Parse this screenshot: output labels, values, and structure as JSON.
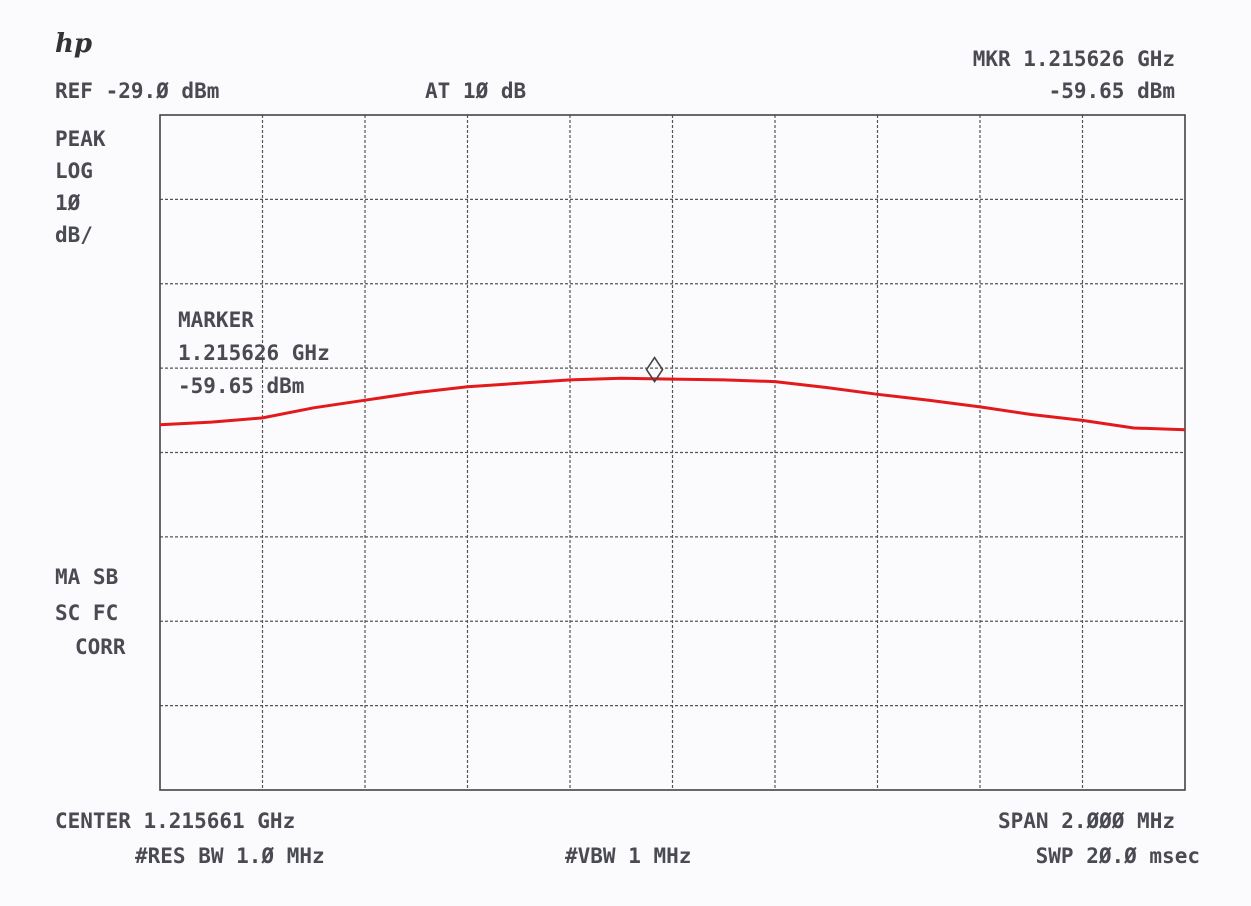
{
  "chart_data": {
    "type": "line",
    "logo": "hp",
    "ref_text": "REF -29.Ø dBm",
    "atten_text": "AT 1Ø dB",
    "marker_top_freq": "MKR 1.215626 GHz",
    "marker_top_level": "-59.65 dBm",
    "scale_texts": [
      "PEAK",
      "LOG",
      "1Ø",
      "dB/"
    ],
    "marker_box": [
      "MARKER",
      "1.215626 GHz",
      "-59.65 dBm"
    ],
    "status_texts": [
      "MA SB",
      "SC FC",
      "CORR"
    ],
    "center_text": "CENTER 1.215661 GHz",
    "span_text": "SPAN 2.ØØØ MHz",
    "rbw_text": "#RES BW 1.Ø MHz",
    "vbw_text": "#VBW 1 MHz",
    "sweep_text": "SWP 2Ø.Ø msec",
    "xlim": [
      1.214661,
      1.216661
    ],
    "ylim": [
      -109,
      -29
    ],
    "x": [
      1.214661,
      1.214761,
      1.214861,
      1.214961,
      1.215061,
      1.215161,
      1.215261,
      1.215361,
      1.215461,
      1.215561,
      1.215661,
      1.215761,
      1.215861,
      1.215961,
      1.216061,
      1.216161,
      1.216261,
      1.216361,
      1.216461,
      1.216561,
      1.216661
    ],
    "series": [
      {
        "color": "#e3191c",
        "values": [
          -65.7,
          -65.4,
          -64.9,
          -63.7,
          -62.8,
          -61.9,
          -61.2,
          -60.8,
          -60.4,
          -60.2,
          -60.3,
          -60.4,
          -60.6,
          -61.3,
          -62.1,
          -62.8,
          -63.6,
          -64.5,
          -65.2,
          -66.1,
          -66.3
        ]
      }
    ],
    "marker": {
      "x": 1.215626,
      "y": -59.65
    }
  }
}
